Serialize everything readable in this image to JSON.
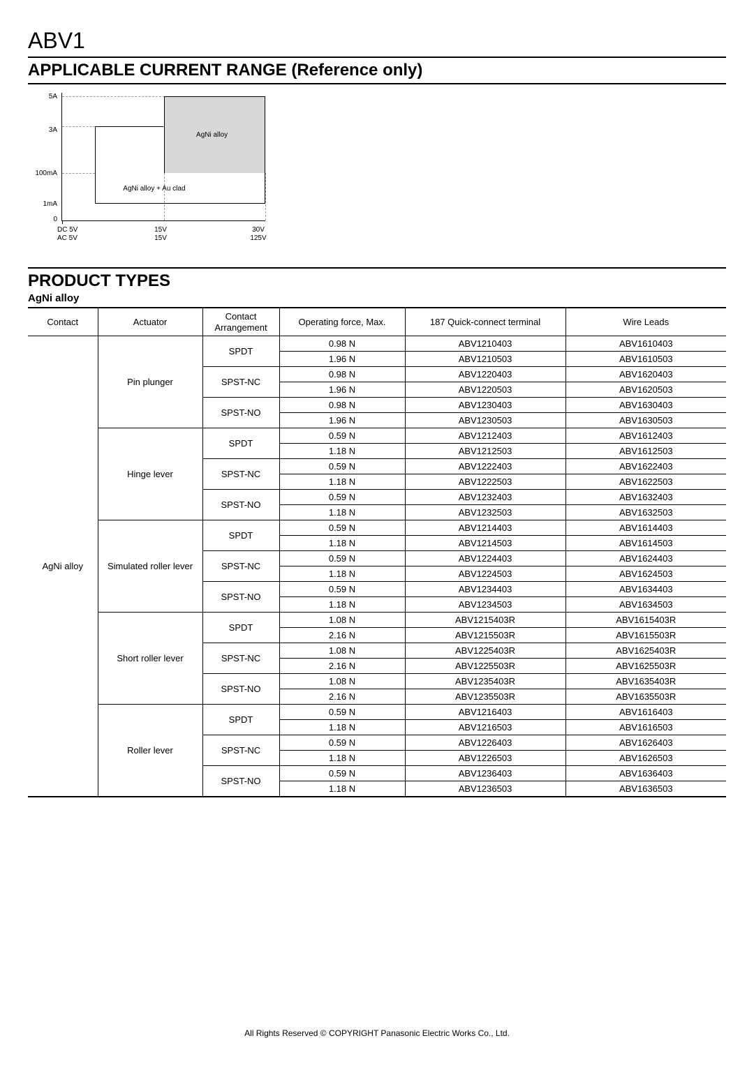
{
  "header": {
    "product_code": "ABV1"
  },
  "range_section": {
    "title": "APPLICABLE CURRENT RANGE (Reference only)",
    "chart": {
      "y_ticks": [
        "5A",
        "3A",
        "100mA",
        "1mA",
        "0"
      ],
      "x_ticks_top": [
        "DC  5V",
        "15V",
        "30V"
      ],
      "x_ticks_bot": [
        "AC  5V",
        "15V",
        "125V"
      ],
      "region1_label": "AgNi alloy",
      "region2_label": "AgNi alloy + Au clad",
      "bg_color": "#ffffff",
      "region_color": "#d8d8d8",
      "axis_color": "#000000",
      "grid_color": "#999999"
    }
  },
  "product_section": {
    "title": "PRODUCT TYPES",
    "subtitle": "AgNi alloy",
    "columns": [
      "Contact",
      "Actuator",
      "Contact\nArrangement",
      "Operating force, Max.",
      "187 Quick-connect terminal",
      "Wire Leads"
    ],
    "contact_label": "AgNi alloy",
    "groups": [
      {
        "actuator": "Pin plunger",
        "arrangements": [
          {
            "name": "SPDT",
            "rows": [
              {
                "force": "0.98 N",
                "qc": "ABV1210403",
                "wl": "ABV1610403"
              },
              {
                "force": "1.96 N",
                "qc": "ABV1210503",
                "wl": "ABV1610503"
              }
            ]
          },
          {
            "name": "SPST-NC",
            "rows": [
              {
                "force": "0.98 N",
                "qc": "ABV1220403",
                "wl": "ABV1620403"
              },
              {
                "force": "1.96 N",
                "qc": "ABV1220503",
                "wl": "ABV1620503"
              }
            ]
          },
          {
            "name": "SPST-NO",
            "rows": [
              {
                "force": "0.98 N",
                "qc": "ABV1230403",
                "wl": "ABV1630403"
              },
              {
                "force": "1.96 N",
                "qc": "ABV1230503",
                "wl": "ABV1630503"
              }
            ]
          }
        ]
      },
      {
        "actuator": "Hinge lever",
        "arrangements": [
          {
            "name": "SPDT",
            "rows": [
              {
                "force": "0.59 N",
                "qc": "ABV1212403",
                "wl": "ABV1612403"
              },
              {
                "force": "1.18 N",
                "qc": "ABV1212503",
                "wl": "ABV1612503"
              }
            ]
          },
          {
            "name": "SPST-NC",
            "rows": [
              {
                "force": "0.59 N",
                "qc": "ABV1222403",
                "wl": "ABV1622403"
              },
              {
                "force": "1.18 N",
                "qc": "ABV1222503",
                "wl": "ABV1622503"
              }
            ]
          },
          {
            "name": "SPST-NO",
            "rows": [
              {
                "force": "0.59 N",
                "qc": "ABV1232403",
                "wl": "ABV1632403"
              },
              {
                "force": "1.18 N",
                "qc": "ABV1232503",
                "wl": "ABV1632503"
              }
            ]
          }
        ]
      },
      {
        "actuator": "Simulated roller lever",
        "arrangements": [
          {
            "name": "SPDT",
            "rows": [
              {
                "force": "0.59 N",
                "qc": "ABV1214403",
                "wl": "ABV1614403"
              },
              {
                "force": "1.18 N",
                "qc": "ABV1214503",
                "wl": "ABV1614503"
              }
            ]
          },
          {
            "name": "SPST-NC",
            "rows": [
              {
                "force": "0.59 N",
                "qc": "ABV1224403",
                "wl": "ABV1624403"
              },
              {
                "force": "1.18 N",
                "qc": "ABV1224503",
                "wl": "ABV1624503"
              }
            ]
          },
          {
            "name": "SPST-NO",
            "rows": [
              {
                "force": "0.59 N",
                "qc": "ABV1234403",
                "wl": "ABV1634403"
              },
              {
                "force": "1.18 N",
                "qc": "ABV1234503",
                "wl": "ABV1634503"
              }
            ]
          }
        ]
      },
      {
        "actuator": "Short roller lever",
        "arrangements": [
          {
            "name": "SPDT",
            "rows": [
              {
                "force": "1.08 N",
                "qc": "ABV1215403R",
                "wl": "ABV1615403R"
              },
              {
                "force": "2.16 N",
                "qc": "ABV1215503R",
                "wl": "ABV1615503R"
              }
            ]
          },
          {
            "name": "SPST-NC",
            "rows": [
              {
                "force": "1.08 N",
                "qc": "ABV1225403R",
                "wl": "ABV1625403R"
              },
              {
                "force": "2.16 N",
                "qc": "ABV1225503R",
                "wl": "ABV1625503R"
              }
            ]
          },
          {
            "name": "SPST-NO",
            "rows": [
              {
                "force": "1.08 N",
                "qc": "ABV1235403R",
                "wl": "ABV1635403R"
              },
              {
                "force": "2.16 N",
                "qc": "ABV1235503R",
                "wl": "ABV1635503R"
              }
            ]
          }
        ]
      },
      {
        "actuator": "Roller lever",
        "arrangements": [
          {
            "name": "SPDT",
            "rows": [
              {
                "force": "0.59 N",
                "qc": "ABV1216403",
                "wl": "ABV1616403"
              },
              {
                "force": "1.18 N",
                "qc": "ABV1216503",
                "wl": "ABV1616503"
              }
            ]
          },
          {
            "name": "SPST-NC",
            "rows": [
              {
                "force": "0.59 N",
                "qc": "ABV1226403",
                "wl": "ABV1626403"
              },
              {
                "force": "1.18 N",
                "qc": "ABV1226503",
                "wl": "ABV1626503"
              }
            ]
          },
          {
            "name": "SPST-NO",
            "rows": [
              {
                "force": "0.59 N",
                "qc": "ABV1236403",
                "wl": "ABV1636403"
              },
              {
                "force": "1.18 N",
                "qc": "ABV1236503",
                "wl": "ABV1636503"
              }
            ]
          }
        ]
      }
    ]
  },
  "footer": {
    "copyright": "All Rights Reserved © COPYRIGHT Panasonic Electric Works Co., Ltd."
  }
}
